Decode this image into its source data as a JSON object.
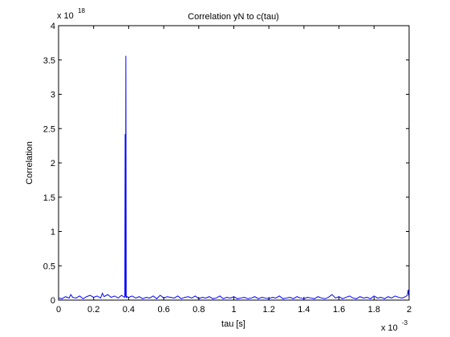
{
  "chart_data": {
    "type": "line",
    "title": "Correlation yN to c(tau)",
    "xlabel": "tau [s]",
    "ylabel": "Correlation",
    "x_multiplier": "x 10",
    "x_multiplier_exp": "-3",
    "y_multiplier": "x 10",
    "y_multiplier_exp": "18",
    "xlim": [
      0,
      2
    ],
    "ylim": [
      0,
      4
    ],
    "xticks": [
      0,
      0.2,
      0.4,
      0.6,
      0.8,
      1,
      1.2,
      1.4,
      1.6,
      1.8,
      2
    ],
    "xtick_labels": [
      "0",
      "0.2",
      "0.4",
      "0.6",
      "0.8",
      "1",
      "1.2",
      "1.4",
      "1.6",
      "1.8",
      "2"
    ],
    "yticks": [
      0,
      0.5,
      1,
      1.5,
      2,
      2.5,
      3,
      3.5,
      4
    ],
    "ytick_labels": [
      "0",
      "0.5",
      "1",
      "1.5",
      "2",
      "2.5",
      "3",
      "3.5",
      "4"
    ],
    "grid": false,
    "series": [
      {
        "color": "#0000ff",
        "x": [
          0,
          0.02,
          0.04,
          0.06,
          0.07,
          0.08,
          0.1,
          0.12,
          0.14,
          0.16,
          0.18,
          0.2,
          0.22,
          0.24,
          0.25,
          0.26,
          0.28,
          0.3,
          0.32,
          0.34,
          0.36,
          0.37,
          0.378,
          0.38,
          0.382,
          0.384,
          0.386,
          0.388,
          0.39,
          0.4,
          0.42,
          0.44,
          0.46,
          0.48,
          0.5,
          0.52,
          0.54,
          0.56,
          0.58,
          0.6,
          0.62,
          0.64,
          0.66,
          0.68,
          0.7,
          0.72,
          0.74,
          0.76,
          0.78,
          0.8,
          0.82,
          0.84,
          0.86,
          0.88,
          0.9,
          0.92,
          0.94,
          0.96,
          0.98,
          1.0,
          1.02,
          1.04,
          1.06,
          1.08,
          1.1,
          1.12,
          1.14,
          1.16,
          1.18,
          1.2,
          1.22,
          1.24,
          1.26,
          1.28,
          1.3,
          1.32,
          1.34,
          1.36,
          1.38,
          1.4,
          1.42,
          1.44,
          1.46,
          1.48,
          1.5,
          1.52,
          1.54,
          1.56,
          1.58,
          1.6,
          1.62,
          1.64,
          1.66,
          1.68,
          1.7,
          1.72,
          1.74,
          1.76,
          1.78,
          1.8,
          1.82,
          1.84,
          1.86,
          1.88,
          1.9,
          1.92,
          1.94,
          1.96,
          1.98,
          1.99,
          1.995,
          2.0
        ],
        "y": [
          0.03,
          0.02,
          0.05,
          0.03,
          0.08,
          0.04,
          0.03,
          0.06,
          0.02,
          0.05,
          0.07,
          0.04,
          0.06,
          0.03,
          0.1,
          0.05,
          0.08,
          0.04,
          0.06,
          0.03,
          0.07,
          0.05,
          0.04,
          2.42,
          0.05,
          3.56,
          0.06,
          0.03,
          0.05,
          0.04,
          0.06,
          0.03,
          0.05,
          0.02,
          0.04,
          0.03,
          0.06,
          0.02,
          0.07,
          0.03,
          0.05,
          0.04,
          0.03,
          0.06,
          0.02,
          0.04,
          0.05,
          0.03,
          0.06,
          0.02,
          0.04,
          0.03,
          0.05,
          0.02,
          0.03,
          0.06,
          0.02,
          0.04,
          0.03,
          0.05,
          0.02,
          0.03,
          0.04,
          0.02,
          0.03,
          0.05,
          0.02,
          0.04,
          0.03,
          0.02,
          0.04,
          0.03,
          0.06,
          0.02,
          0.03,
          0.04,
          0.02,
          0.05,
          0.03,
          0.02,
          0.04,
          0.03,
          0.02,
          0.05,
          0.03,
          0.02,
          0.04,
          0.08,
          0.03,
          0.05,
          0.02,
          0.04,
          0.06,
          0.03,
          0.02,
          0.05,
          0.03,
          0.04,
          0.02,
          0.06,
          0.03,
          0.04,
          0.02,
          0.05,
          0.03,
          0.06,
          0.04,
          0.03,
          0.05,
          0.07,
          0.15,
          0.04
        ]
      }
    ]
  }
}
